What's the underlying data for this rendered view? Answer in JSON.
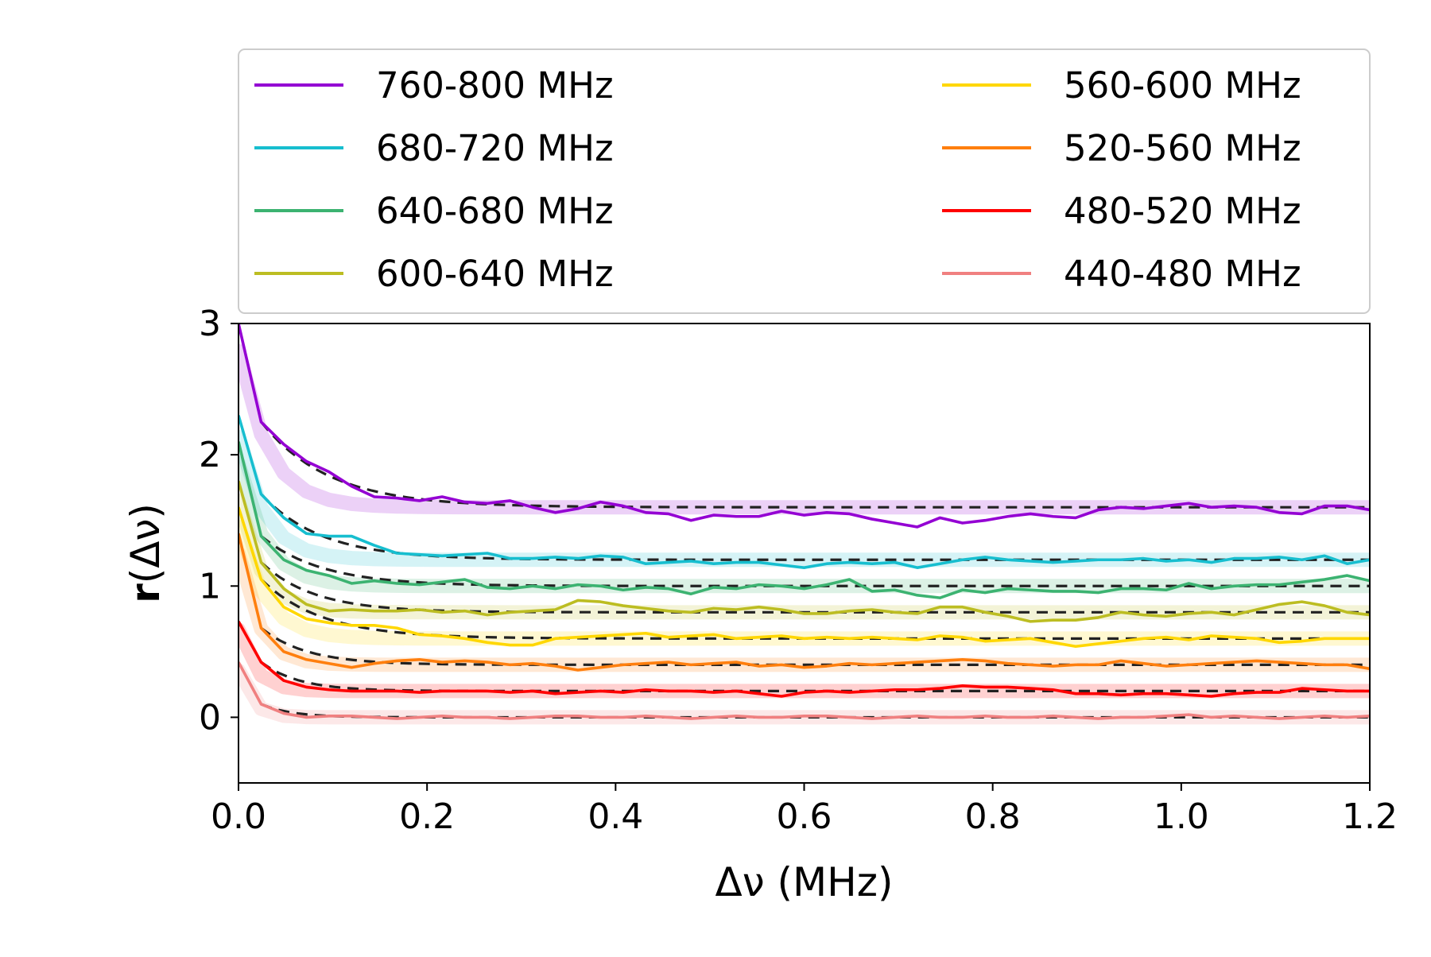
{
  "chart_data": {
    "type": "line",
    "title": "",
    "xlabel": "Δν (MHz)",
    "ylabel_bold": "r",
    "ylabel_rest": "(Δν)",
    "xlim": [
      0.0,
      1.2
    ],
    "ylim": [
      -0.5,
      3.0
    ],
    "xticks": [
      "0.0",
      "0.2",
      "0.4",
      "0.6",
      "0.8",
      "1.0",
      "1.2"
    ],
    "yticks": [
      "0",
      "1",
      "2",
      "3"
    ],
    "grid": false,
    "legend_position": "above plot, two columns",
    "x": [
      0.0,
      0.024,
      0.048,
      0.072,
      0.096,
      0.12,
      0.144,
      0.168,
      0.192,
      0.216,
      0.24,
      0.264,
      0.288,
      0.312,
      0.336,
      0.36,
      0.384,
      0.408,
      0.432,
      0.456,
      0.48,
      0.504,
      0.528,
      0.552,
      0.576,
      0.6,
      0.624,
      0.648,
      0.672,
      0.696,
      0.72,
      0.744,
      0.768,
      0.792,
      0.816,
      0.84,
      0.864,
      0.888,
      0.912,
      0.936,
      0.96,
      0.984,
      1.008,
      1.032,
      1.056,
      1.08,
      1.104,
      1.128,
      1.152,
      1.176,
      1.2
    ],
    "series": [
      {
        "name": "760-800 MHz",
        "color": "#9400D3",
        "offset": 1.6,
        "amp": 1.4,
        "scale": 0.045,
        "values": [
          3.0,
          2.25,
          2.08,
          1.95,
          1.87,
          1.76,
          1.68,
          1.67,
          1.65,
          1.68,
          1.64,
          1.63,
          1.65,
          1.6,
          1.56,
          1.59,
          1.64,
          1.61,
          1.56,
          1.55,
          1.5,
          1.54,
          1.53,
          1.53,
          1.57,
          1.54,
          1.56,
          1.55,
          1.51,
          1.48,
          1.45,
          1.52,
          1.48,
          1.5,
          1.53,
          1.55,
          1.53,
          1.52,
          1.58,
          1.6,
          1.59,
          1.61,
          1.63,
          1.6,
          1.61,
          1.6,
          1.56,
          1.55,
          1.61,
          1.61,
          1.58
        ]
      },
      {
        "name": "680-720 MHz",
        "color": "#17BECF",
        "offset": 1.2,
        "amp": 1.1,
        "scale": 0.04,
        "values": [
          2.3,
          1.7,
          1.52,
          1.4,
          1.38,
          1.38,
          1.31,
          1.25,
          1.24,
          1.23,
          1.24,
          1.25,
          1.21,
          1.21,
          1.22,
          1.21,
          1.23,
          1.22,
          1.17,
          1.18,
          1.19,
          1.17,
          1.18,
          1.18,
          1.16,
          1.14,
          1.17,
          1.18,
          1.17,
          1.18,
          1.14,
          1.17,
          1.2,
          1.22,
          1.2,
          1.19,
          1.18,
          1.19,
          1.2,
          1.2,
          1.21,
          1.19,
          1.2,
          1.18,
          1.21,
          1.21,
          1.22,
          1.2,
          1.23,
          1.17,
          1.2
        ]
      },
      {
        "name": "640-680 MHz",
        "color": "#3CB371",
        "offset": 1.0,
        "amp": 1.1,
        "scale": 0.04,
        "values": [
          2.1,
          1.38,
          1.2,
          1.12,
          1.08,
          1.02,
          1.04,
          1.02,
          1.01,
          1.03,
          1.05,
          0.99,
          0.98,
          1.0,
          0.98,
          1.01,
          1.0,
          0.97,
          0.99,
          0.98,
          0.94,
          0.99,
          0.98,
          1.01,
          1.0,
          0.98,
          1.01,
          1.05,
          0.96,
          0.97,
          0.93,
          0.91,
          0.97,
          0.95,
          0.98,
          0.97,
          0.96,
          0.96,
          0.95,
          0.98,
          0.98,
          0.97,
          1.02,
          0.98,
          1.0,
          1.01,
          1.01,
          1.03,
          1.05,
          1.08,
          1.04
        ]
      },
      {
        "name": "600-640 MHz",
        "color": "#BCBD22",
        "offset": 0.8,
        "amp": 1.0,
        "scale": 0.035,
        "values": [
          1.8,
          1.18,
          0.98,
          0.86,
          0.81,
          0.82,
          0.81,
          0.81,
          0.82,
          0.8,
          0.81,
          0.78,
          0.8,
          0.81,
          0.82,
          0.89,
          0.88,
          0.85,
          0.83,
          0.81,
          0.8,
          0.83,
          0.82,
          0.84,
          0.82,
          0.79,
          0.79,
          0.81,
          0.82,
          0.8,
          0.79,
          0.84,
          0.84,
          0.8,
          0.77,
          0.73,
          0.74,
          0.74,
          0.76,
          0.8,
          0.78,
          0.77,
          0.79,
          0.8,
          0.78,
          0.82,
          0.86,
          0.88,
          0.85,
          0.8,
          0.78
        ]
      },
      {
        "name": "560-600 MHz",
        "color": "#FFD700",
        "offset": 0.6,
        "amp": 1.0,
        "scale": 0.04,
        "values": [
          1.6,
          1.05,
          0.84,
          0.75,
          0.72,
          0.7,
          0.7,
          0.68,
          0.63,
          0.62,
          0.6,
          0.57,
          0.55,
          0.55,
          0.6,
          0.61,
          0.62,
          0.63,
          0.64,
          0.61,
          0.62,
          0.63,
          0.6,
          0.61,
          0.62,
          0.6,
          0.61,
          0.6,
          0.61,
          0.6,
          0.59,
          0.62,
          0.61,
          0.58,
          0.59,
          0.6,
          0.57,
          0.54,
          0.56,
          0.58,
          0.6,
          0.61,
          0.59,
          0.62,
          0.61,
          0.6,
          0.57,
          0.58,
          0.6,
          0.6,
          0.6
        ]
      },
      {
        "name": "520-560 MHz",
        "color": "#FF7F0E",
        "offset": 0.4,
        "amp": 1.0,
        "scale": 0.03,
        "values": [
          1.4,
          0.68,
          0.5,
          0.44,
          0.41,
          0.38,
          0.41,
          0.43,
          0.44,
          0.42,
          0.43,
          0.42,
          0.4,
          0.41,
          0.39,
          0.36,
          0.38,
          0.4,
          0.41,
          0.42,
          0.4,
          0.41,
          0.42,
          0.39,
          0.4,
          0.38,
          0.39,
          0.41,
          0.4,
          0.41,
          0.42,
          0.43,
          0.44,
          0.43,
          0.41,
          0.4,
          0.39,
          0.4,
          0.4,
          0.43,
          0.41,
          0.39,
          0.4,
          0.41,
          0.42,
          0.43,
          0.42,
          0.41,
          0.4,
          0.4,
          0.37
        ]
      },
      {
        "name": "480-520 MHz",
        "color": "#FF0000",
        "offset": 0.2,
        "amp": 0.55,
        "scale": 0.025,
        "values": [
          0.73,
          0.42,
          0.28,
          0.23,
          0.21,
          0.2,
          0.2,
          0.2,
          0.19,
          0.2,
          0.2,
          0.2,
          0.19,
          0.2,
          0.18,
          0.19,
          0.2,
          0.19,
          0.21,
          0.2,
          0.2,
          0.19,
          0.2,
          0.18,
          0.16,
          0.19,
          0.2,
          0.19,
          0.2,
          0.21,
          0.21,
          0.22,
          0.24,
          0.23,
          0.23,
          0.22,
          0.21,
          0.18,
          0.18,
          0.17,
          0.18,
          0.18,
          0.17,
          0.16,
          0.18,
          0.19,
          0.19,
          0.22,
          0.21,
          0.2,
          0.2
        ]
      },
      {
        "name": "440-480 MHz",
        "color": "#F08080",
        "offset": 0.0,
        "amp": 0.42,
        "scale": 0.02,
        "values": [
          0.42,
          0.1,
          0.03,
          0.0,
          0.01,
          0.01,
          0.0,
          -0.01,
          0.0,
          0.01,
          0.0,
          0.0,
          -0.01,
          0.0,
          0.01,
          0.01,
          0.0,
          0.0,
          0.01,
          0.0,
          -0.01,
          0.0,
          0.01,
          0.0,
          0.0,
          0.01,
          0.01,
          0.0,
          -0.01,
          0.0,
          0.01,
          0.0,
          0.0,
          0.01,
          0.0,
          0.0,
          0.01,
          0.0,
          -0.01,
          0.0,
          0.0,
          0.01,
          0.02,
          0.0,
          0.01,
          0.0,
          -0.01,
          0.0,
          0.01,
          0.0,
          0.01
        ]
      }
    ]
  }
}
